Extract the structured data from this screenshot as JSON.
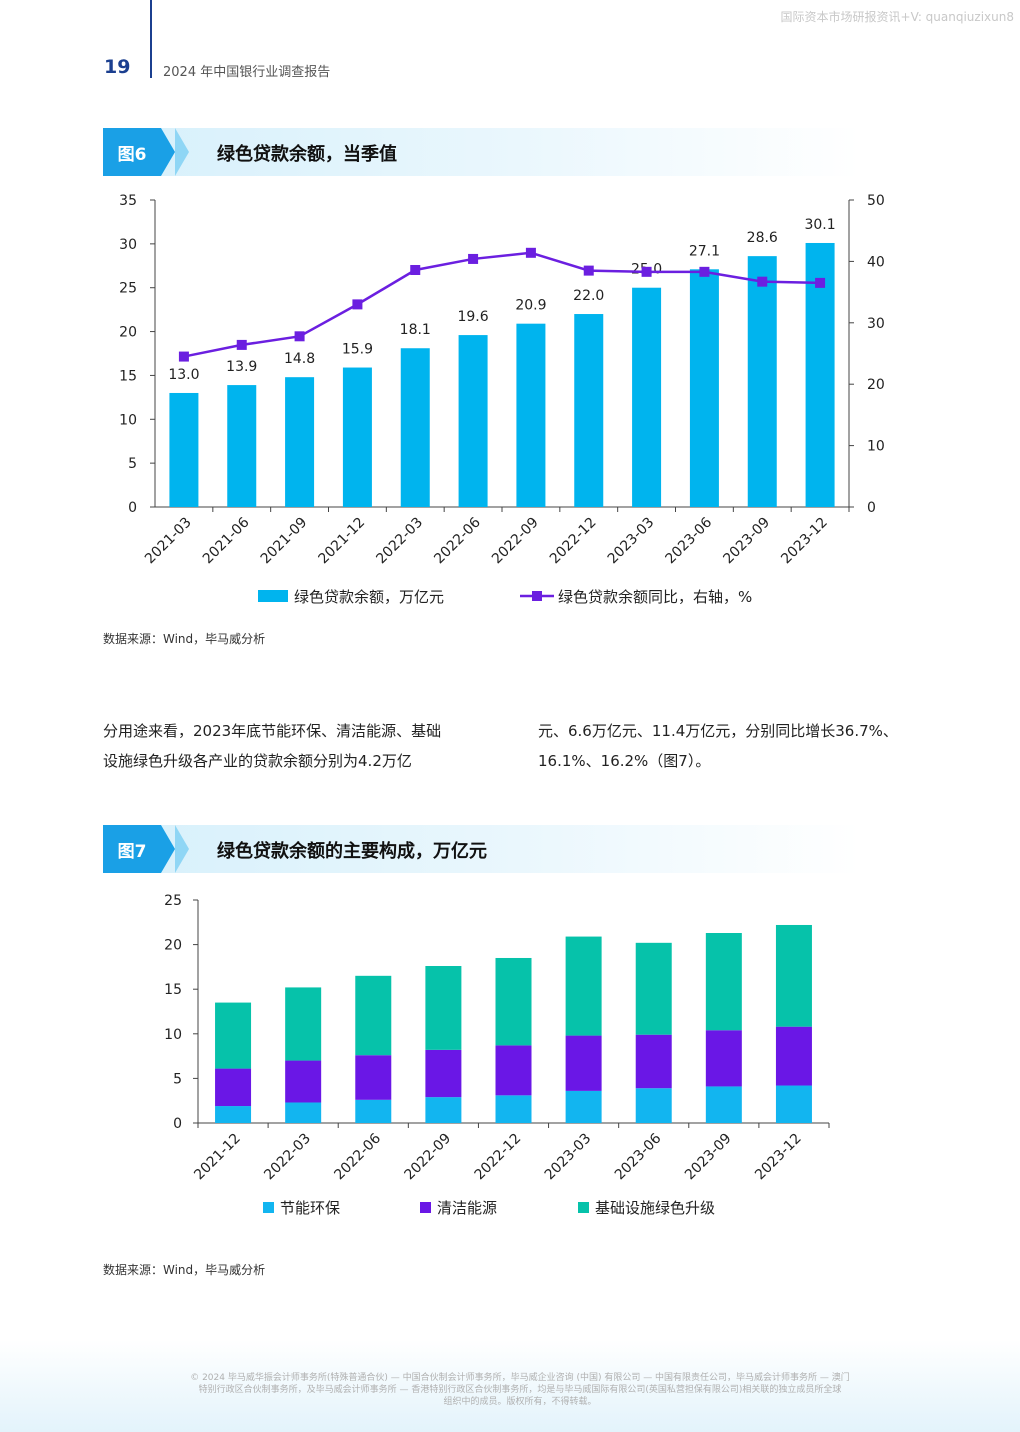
{
  "watermark": "国际资本市场研报资讯+V: quanqiuzixun8",
  "header": {
    "page_number": "19",
    "report_title": "2024 年中国银行业调查报告"
  },
  "fig6": {
    "tag": "图6",
    "title": "绿色贷款余额，当季值",
    "source": "数据来源：Wind，毕马威分析",
    "chart_data": {
      "type": "bar+line",
      "categories": [
        "2021-03",
        "2021-06",
        "2021-09",
        "2021-12",
        "2022-03",
        "2022-06",
        "2022-09",
        "2022-12",
        "2023-03",
        "2023-06",
        "2023-09",
        "2023-12"
      ],
      "series": [
        {
          "name": "绿色贷款余额，万亿元",
          "type": "bar",
          "axis": "left",
          "color": "#00b4ee",
          "values": [
            13.0,
            13.9,
            14.8,
            15.9,
            18.1,
            19.6,
            20.9,
            22.0,
            25.0,
            27.1,
            28.6,
            30.1
          ],
          "labels": [
            "13.0",
            "13.9",
            "14.8",
            "15.9",
            "18.1",
            "19.6",
            "20.9",
            "22.0",
            "25.0",
            "27.1",
            "28.6",
            "30.1"
          ]
        },
        {
          "name": "绿色贷款余额同比，右轴，%",
          "type": "line",
          "axis": "right",
          "color": "#6b1fe0",
          "values": [
            24.5,
            26.4,
            27.8,
            33.0,
            38.6,
            40.4,
            41.4,
            38.5,
            38.3,
            38.3,
            36.7,
            36.5
          ]
        }
      ],
      "left_axis": {
        "min": 0,
        "max": 35,
        "ticks": [
          "0",
          "5",
          "10",
          "15",
          "20",
          "25",
          "30",
          "35"
        ]
      },
      "right_axis": {
        "min": 0,
        "max": 50,
        "ticks": [
          "0",
          "10",
          "20",
          "30",
          "40",
          "50"
        ]
      },
      "legend_position": "bottom"
    }
  },
  "paragraph": {
    "left_line1": "分用途来看，2023年底节能环保、清洁能源、基础",
    "left_line2": "设施绿色升级各产业的贷款余额分别为4.2万亿",
    "right_line1": "元、6.6万亿元、11.4万亿元，分别同比增长36.7%、",
    "right_line2": "16.1%、16.2%（图7）。"
  },
  "fig7": {
    "tag": "图7",
    "title": "绿色贷款余额的主要构成，万亿元",
    "source": "数据来源：Wind，毕马威分析",
    "chart_data": {
      "type": "stacked-bar",
      "categories": [
        "2021-12",
        "2022-03",
        "2022-06",
        "2022-09",
        "2022-12",
        "2023-03",
        "2023-06",
        "2023-09",
        "2023-12"
      ],
      "series": [
        {
          "name": "节能环保",
          "color": "#12b5f0",
          "values": [
            1.9,
            2.3,
            2.6,
            2.9,
            3.1,
            3.6,
            3.9,
            4.1,
            4.2
          ]
        },
        {
          "name": "清洁能源",
          "color": "#6a17e6",
          "values": [
            4.2,
            4.7,
            5.0,
            5.3,
            5.6,
            6.2,
            6.0,
            6.3,
            6.6
          ]
        },
        {
          "name": "基础设施绿色升级",
          "color": "#06c2aa",
          "values": [
            7.4,
            8.2,
            8.9,
            9.4,
            9.8,
            11.1,
            10.3,
            10.9,
            11.4
          ]
        }
      ],
      "y_axis": {
        "min": 0,
        "max": 25,
        "ticks": [
          "0",
          "5",
          "10",
          "15",
          "20",
          "25"
        ]
      },
      "legend_position": "bottom"
    }
  },
  "footer": {
    "line1": "© 2024 毕马威华振会计师事务所(特殊普通合伙) — 中国合伙制会计师事务所，毕马威企业咨询 (中国) 有限公司 — 中国有限责任公司，毕马威会计师事务所 — 澳门",
    "line2": "特别行政区合伙制事务所，及毕马威会计师事务所 — 香港特别行政区合伙制事务所，均是与毕马威国际有限公司(英国私营担保有限公司)相关联的独立成员所全球",
    "line3": "组织中的成员。版权所有，不得转载。"
  }
}
